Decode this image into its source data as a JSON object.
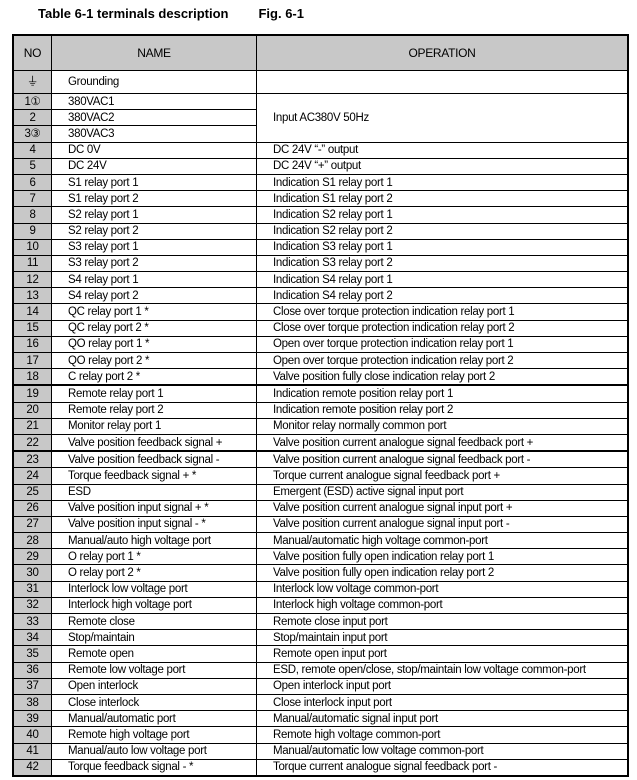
{
  "title": "Table 6-1 terminals description",
  "fig": "Fig.   6-1",
  "headers": {
    "no": "NO",
    "name": "NAME",
    "operation": "OPERATION"
  },
  "grounding": {
    "no": "⏚",
    "name": "Grounding",
    "op": ""
  },
  "ac": {
    "rows": [
      [
        "1①",
        "380VAC1"
      ],
      [
        "2",
        "380VAC2"
      ],
      [
        "3③",
        "380VAC3"
      ]
    ],
    "op": "Input AC380V 50Hz"
  },
  "rows": [
    [
      "4",
      "DC 0V",
      "DC 24V “-” output"
    ],
    [
      "5",
      "DC 24V",
      "DC 24V “+” output"
    ],
    [
      "6",
      "S1 relay port 1",
      "Indication S1 relay port 1"
    ],
    [
      "7",
      "S1 relay port 2",
      "Indication S1 relay port 2"
    ],
    [
      "8",
      "S2 relay port 1",
      "Indication S2 relay port 1"
    ],
    [
      "9",
      "S2 relay port 2",
      "Indication S2 relay port 2"
    ],
    [
      "10",
      "S3 relay port 1",
      "Indication S3 relay port 1"
    ],
    [
      "11",
      "S3 relay port 2",
      "Indication S3 relay port 2"
    ],
    [
      "12",
      "S4 relay port 1",
      "Indication S4 relay port 1"
    ],
    [
      "13",
      "S4 relay port 2",
      "Indication S4 relay port 2"
    ],
    [
      "14",
      "QC relay port 1 *",
      "Close over torque protection indication relay port 1"
    ],
    [
      "15",
      "QC relay port 2 *",
      "Close over torque protection indication relay port 2"
    ],
    [
      "16",
      "QO relay port 1 *",
      "Open over torque protection indication relay port 1"
    ],
    [
      "17",
      "QO relay port 2 *",
      "Open over torque protection indication relay port 2"
    ],
    [
      "18",
      "C relay port 2    *",
      "Valve position fully close indication relay port 2"
    ],
    [
      "19",
      "Remote relay port 1",
      "Indication remote position relay port 1"
    ],
    [
      "20",
      "Remote relay port 2",
      "Indication remote position relay port 2"
    ],
    [
      "21",
      "Monitor relay port 1",
      "Monitor relay normally common port"
    ],
    [
      "22",
      "Valve position feedback signal +",
      "Valve position current analogue signal feedback port +"
    ],
    [
      "23",
      "Valve position feedback signal -",
      "Valve position current analogue signal feedback port -"
    ],
    [
      "24",
      "Torque feedback signal + *",
      "Torque current analogue signal feedback port +"
    ],
    [
      "25",
      "ESD",
      "Emergent (ESD) active signal input port"
    ],
    [
      "26",
      "Valve position input signal + *",
      "Valve position current analogue signal input port +"
    ],
    [
      "27",
      "Valve position input signal - *",
      "Valve position current analogue signal input port -"
    ],
    [
      "28",
      "Manual/auto high voltage port",
      "Manual/automatic high voltage common-port"
    ],
    [
      "29",
      "O relay port 1 *",
      "Valve position fully open indication relay port 1"
    ],
    [
      "30",
      "O relay port 2 *",
      "Valve position fully open indication relay port 2"
    ],
    [
      "31",
      "Interlock low voltage port",
      "Interlock low voltage common-port"
    ],
    [
      "32",
      "Interlock high voltage port",
      "Interlock high voltage common-port"
    ],
    [
      "33",
      "Remote close",
      "Remote close input port"
    ],
    [
      "34",
      "Stop/maintain",
      "Stop/maintain input port"
    ],
    [
      "35",
      "Remote open",
      "Remote open input port"
    ],
    [
      "36",
      "Remote low voltage port",
      "ESD, remote open/close, stop/maintain low voltage common-port"
    ],
    [
      "37",
      "Open interlock",
      "Open interlock input port"
    ],
    [
      "38",
      "Close interlock",
      "Close interlock input port"
    ],
    [
      "39",
      "Manual/automatic port",
      "Manual/automatic signal input port"
    ],
    [
      "40",
      "Remote high voltage port",
      "Remote high voltage common-port"
    ],
    [
      "41",
      "Manual/auto low voltage port",
      "Manual/automatic low voltage common-port"
    ],
    [
      "42",
      "Torque feedback signal - *",
      "Torque current analogue signal feedback port -"
    ]
  ]
}
